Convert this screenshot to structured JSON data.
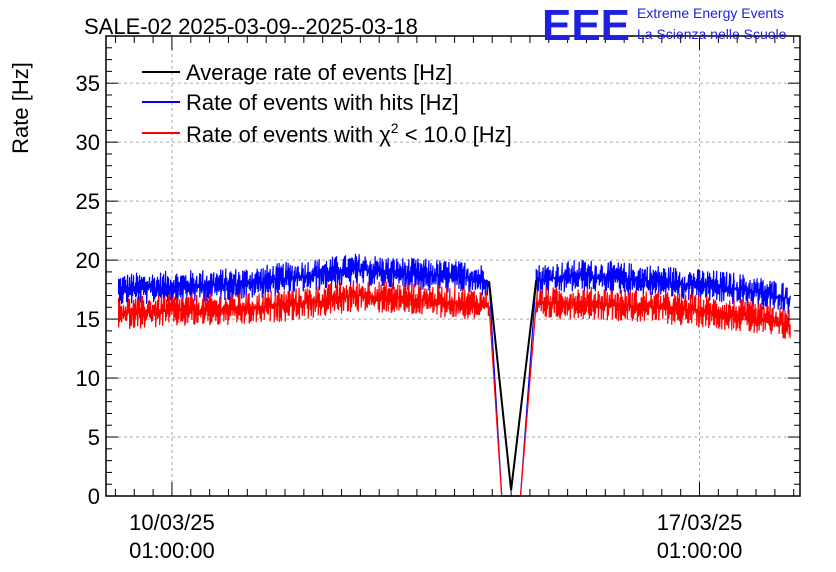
{
  "chart_data": {
    "type": "line",
    "title": "SALE-02 2025-03-09--2025-03-18",
    "xlabel": "",
    "ylabel": "Rate [Hz]",
    "ylim": [
      0,
      39
    ],
    "yticks": [
      0,
      5,
      10,
      15,
      20,
      25,
      30,
      35
    ],
    "xlim": [
      "2025-03-09 04:00",
      "2025-03-18 09:00"
    ],
    "xticks": [
      {
        "x": "2025-03-10 01:00:00",
        "line1": "10/03/25",
        "line2": "01:00:00"
      },
      {
        "x": "2025-03-17 01:00:00",
        "line1": "17/03/25",
        "line2": "01:00:00"
      }
    ],
    "grid": true,
    "legend_position": "top-left",
    "colors": {
      "average": "#000000",
      "hits": "#0000ff",
      "chi2": "#ff0000"
    },
    "series": [
      {
        "name": "Average rate of events [Hz]",
        "color": "#000000",
        "points": [
          [
            "2025-03-09 08:00",
            17.5
          ],
          [
            "2025-03-10 00:00",
            17.7
          ],
          [
            "2025-03-11 00:00",
            18.0
          ],
          [
            "2025-03-12 00:00",
            18.8
          ],
          [
            "2025-03-12 12:00",
            19.2
          ],
          [
            "2025-03-13 00:00",
            18.9
          ],
          [
            "2025-03-14 00:00",
            18.5
          ],
          [
            "2025-03-14 06:00",
            18.2
          ],
          [
            "2025-03-14 13:00",
            0.5
          ],
          [
            "2025-03-14 21:00",
            18.3
          ],
          [
            "2025-03-15 12:00",
            18.7
          ],
          [
            "2025-03-16 12:00",
            18.2
          ],
          [
            "2025-03-17 12:00",
            17.6
          ],
          [
            "2025-03-18 06:00",
            16.7
          ]
        ]
      },
      {
        "name": "Rate of events with hits [Hz]",
        "color": "#0000ff",
        "points": [
          [
            "2025-03-09 08:00",
            17.5
          ],
          [
            "2025-03-10 00:00",
            17.7
          ],
          [
            "2025-03-11 00:00",
            18.0
          ],
          [
            "2025-03-12 00:00",
            18.8
          ],
          [
            "2025-03-12 12:00",
            19.2
          ],
          [
            "2025-03-13 00:00",
            18.9
          ],
          [
            "2025-03-14 00:00",
            18.5
          ],
          [
            "2025-03-14 06:00",
            18.2
          ],
          [
            "2025-03-14 10:00",
            0.0
          ],
          [
            "2025-03-14 16:00",
            0.0
          ],
          [
            "2025-03-14 21:00",
            18.3
          ],
          [
            "2025-03-15 12:00",
            18.7
          ],
          [
            "2025-03-16 12:00",
            18.2
          ],
          [
            "2025-03-17 12:00",
            17.6
          ],
          [
            "2025-03-18 06:00",
            16.7
          ]
        ]
      },
      {
        "name": "Rate of events with χ² < 10.0 [Hz]",
        "color": "#ff0000",
        "points": [
          [
            "2025-03-09 08:00",
            15.5
          ],
          [
            "2025-03-10 00:00",
            15.7
          ],
          [
            "2025-03-11 00:00",
            15.8
          ],
          [
            "2025-03-12 00:00",
            16.5
          ],
          [
            "2025-03-12 12:00",
            17.0
          ],
          [
            "2025-03-13 00:00",
            16.8
          ],
          [
            "2025-03-14 00:00",
            16.3
          ],
          [
            "2025-03-14 06:00",
            16.1
          ],
          [
            "2025-03-14 10:00",
            0.0
          ],
          [
            "2025-03-14 16:00",
            0.0
          ],
          [
            "2025-03-14 21:00",
            16.3
          ],
          [
            "2025-03-15 12:00",
            16.4
          ],
          [
            "2025-03-16 12:00",
            16.0
          ],
          [
            "2025-03-17 12:00",
            15.4
          ],
          [
            "2025-03-18 06:00",
            14.5
          ]
        ]
      }
    ]
  },
  "legend": {
    "average": "Average rate of events [Hz]",
    "hits": "Rate of events with hits [Hz]",
    "chi2_prefix": "Rate of events with ",
    "chi2_symbol": "χ",
    "chi2_sup": "2",
    "chi2_suffix": " < 10.0 [Hz]"
  },
  "logo": {
    "mark": "EEE",
    "line1": "Extreme Energy Events",
    "line2": "La Scienza nelle Scuole",
    "color": "#1f1fe0"
  }
}
